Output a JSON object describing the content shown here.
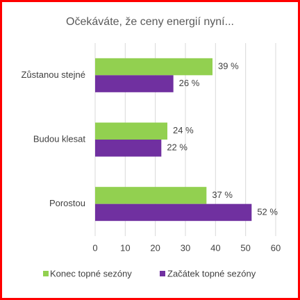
{
  "chart_data": {
    "type": "hbar",
    "title": "Očekáváte, že ceny energií nyní...",
    "categories": [
      "Zůstanou stejné",
      "Budou klesat",
      "Porostou"
    ],
    "series": [
      {
        "name": "Konec topné sezóny",
        "color": "#92d050",
        "values": [
          39,
          24,
          37
        ],
        "value_labels": [
          "39 %",
          "24 %",
          "37 %"
        ]
      },
      {
        "name": "Začátek topné sezóny",
        "color": "#7030a0",
        "values": [
          26,
          22,
          52
        ],
        "value_labels": [
          "26 %",
          "22 %",
          "52 %"
        ]
      }
    ],
    "xlim": [
      0,
      60
    ],
    "xticks": [
      0,
      10,
      20,
      30,
      40,
      50,
      60
    ],
    "grid": true,
    "legend": "bottom"
  }
}
